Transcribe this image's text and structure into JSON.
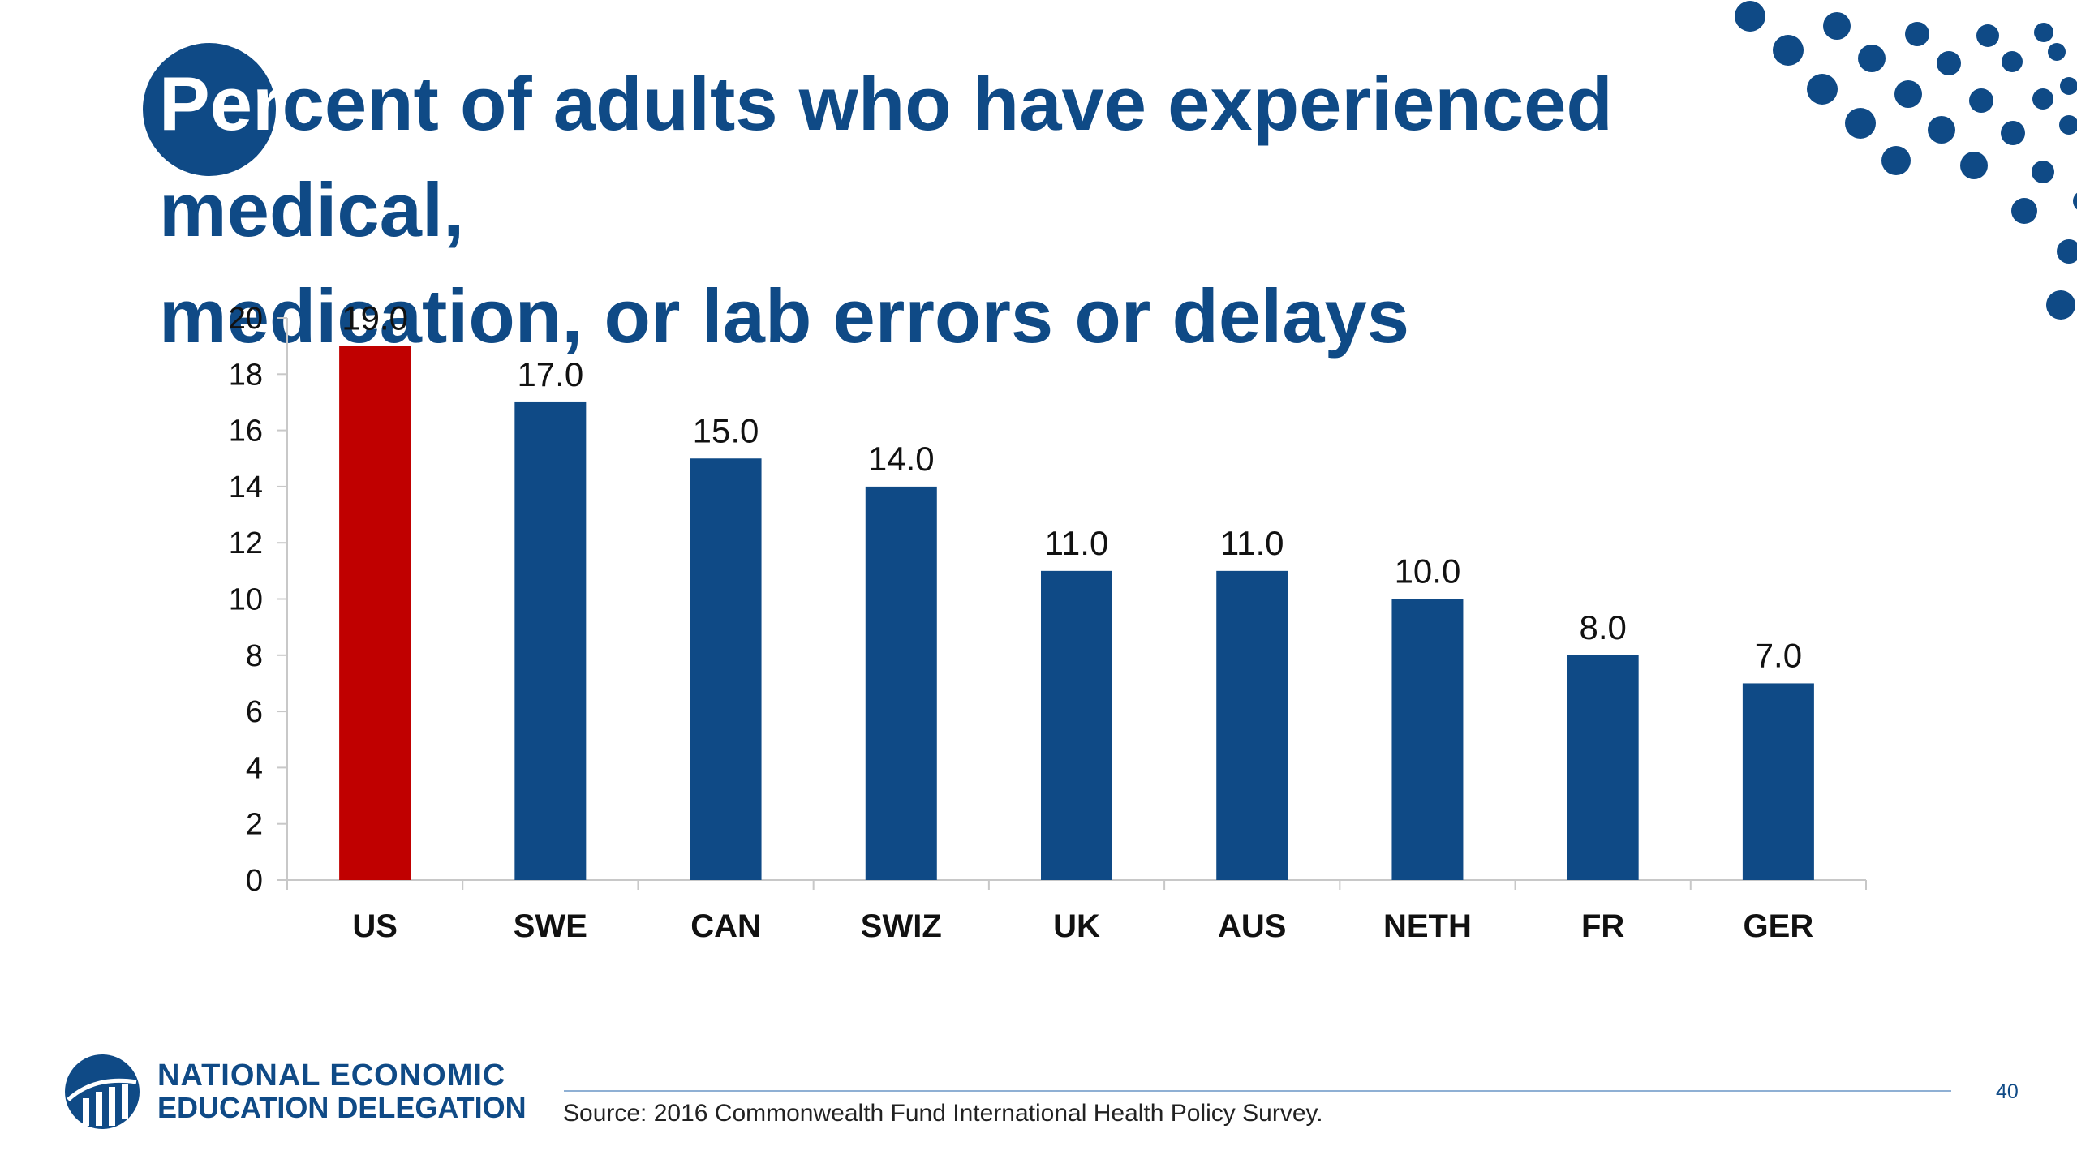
{
  "slide": {
    "title_part1": "Per",
    "title_part2": "cent of adults who have experienced medical,",
    "title_line2": "medication, or lab errors or delays",
    "page_number": "40",
    "source": "Source: 2016 Commonwealth Fund International Health Policy Survey.",
    "logo_line1": "NATIONAL ECONOMIC",
    "logo_line2": "EDUCATION DELEGATION",
    "colors": {
      "primary": "#0f4a86",
      "highlight": "#c00000"
    }
  },
  "chart_data": {
    "type": "bar",
    "categories": [
      "US",
      "SWE",
      "CAN",
      "SWIZ",
      "UK",
      "AUS",
      "NETH",
      "FR",
      "GER"
    ],
    "values": [
      19.0,
      17.0,
      15.0,
      14.0,
      11.0,
      11.0,
      10.0,
      8.0,
      7.0
    ],
    "data_labels": [
      "19.0",
      "17.0",
      "15.0",
      "14.0",
      "11.0",
      "11.0",
      "10.0",
      "8.0",
      "7.0"
    ],
    "highlight_index": 0,
    "ylim": [
      0,
      20
    ],
    "yticks": [
      0,
      2,
      4,
      6,
      8,
      10,
      12,
      14,
      16,
      18,
      20
    ],
    "xlabel": "",
    "ylabel": "",
    "grid": false,
    "legend": "none"
  }
}
